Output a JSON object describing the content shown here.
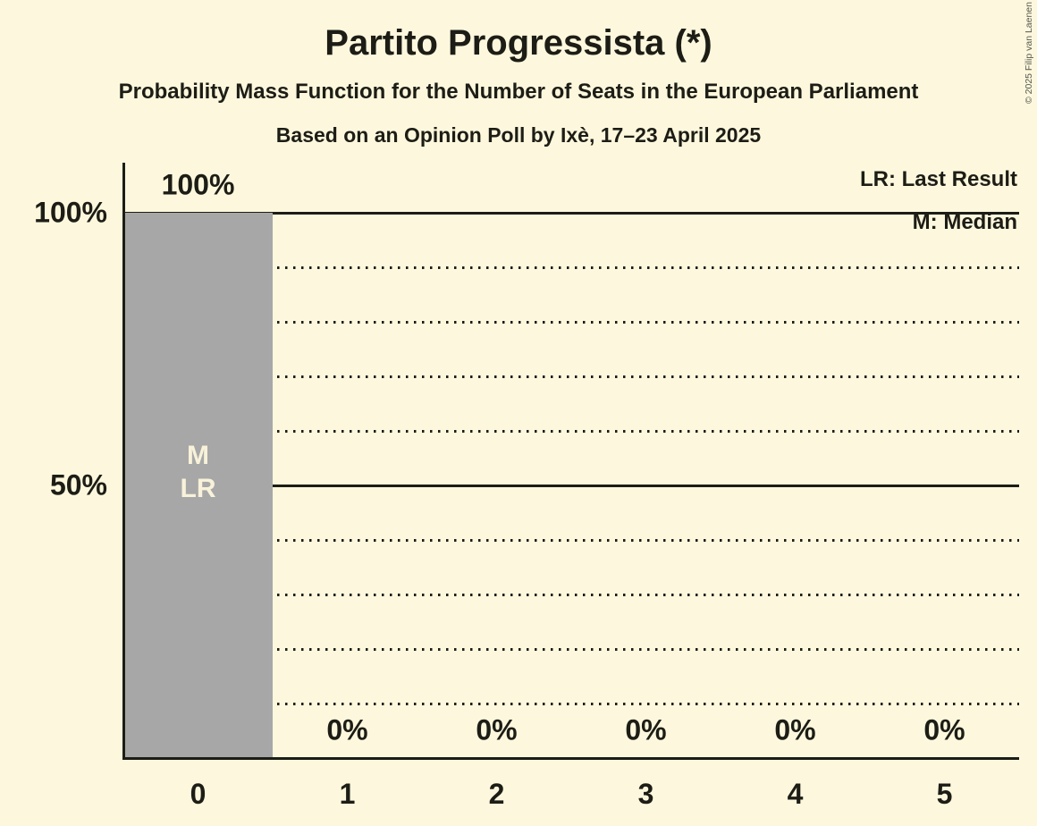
{
  "meta": {
    "copyright": "© 2025 Filip van Laenen"
  },
  "header": {
    "title": "Partito Progressista (*)",
    "subtitle": "Probability Mass Function for the Number of Seats in the European Parliament",
    "poll_line": "Based on an Opinion Poll by Ixè, 17–23 April 2025"
  },
  "legend": {
    "lr_label": "LR: Last Result",
    "m_label": "M: Median"
  },
  "chart_data": {
    "type": "bar",
    "title": "Partito Progressista (*)",
    "xlabel": "",
    "ylabel": "",
    "categories": [
      "0",
      "1",
      "2",
      "3",
      "4",
      "5"
    ],
    "values": [
      100,
      0,
      0,
      0,
      0,
      0
    ],
    "value_labels": [
      "100%",
      "0%",
      "0%",
      "0%",
      "0%",
      "0%"
    ],
    "ylim": [
      0,
      100
    ],
    "y_ticks": [
      {
        "label": "100%",
        "pct": 100
      },
      {
        "label": "50%",
        "pct": 50
      }
    ],
    "solid_gridlines_pct": [
      100,
      50
    ],
    "dotted_gridlines_pct": [
      90,
      80,
      70,
      60,
      40,
      30,
      20,
      10
    ],
    "bar_annotations": [
      {
        "index": 0,
        "lines": [
          "M",
          "LR"
        ]
      }
    ],
    "legend_position": "top-right",
    "grid": "horizontal-dotted-plus-solid-50-100",
    "colors": {
      "background": "#fdf8dd",
      "bar": "#a7a7a7",
      "line": "#1d1d16",
      "text": "#1d1d16",
      "bar_annotation_text": "#f7f2d9",
      "copyright_text": "#55554d"
    }
  }
}
